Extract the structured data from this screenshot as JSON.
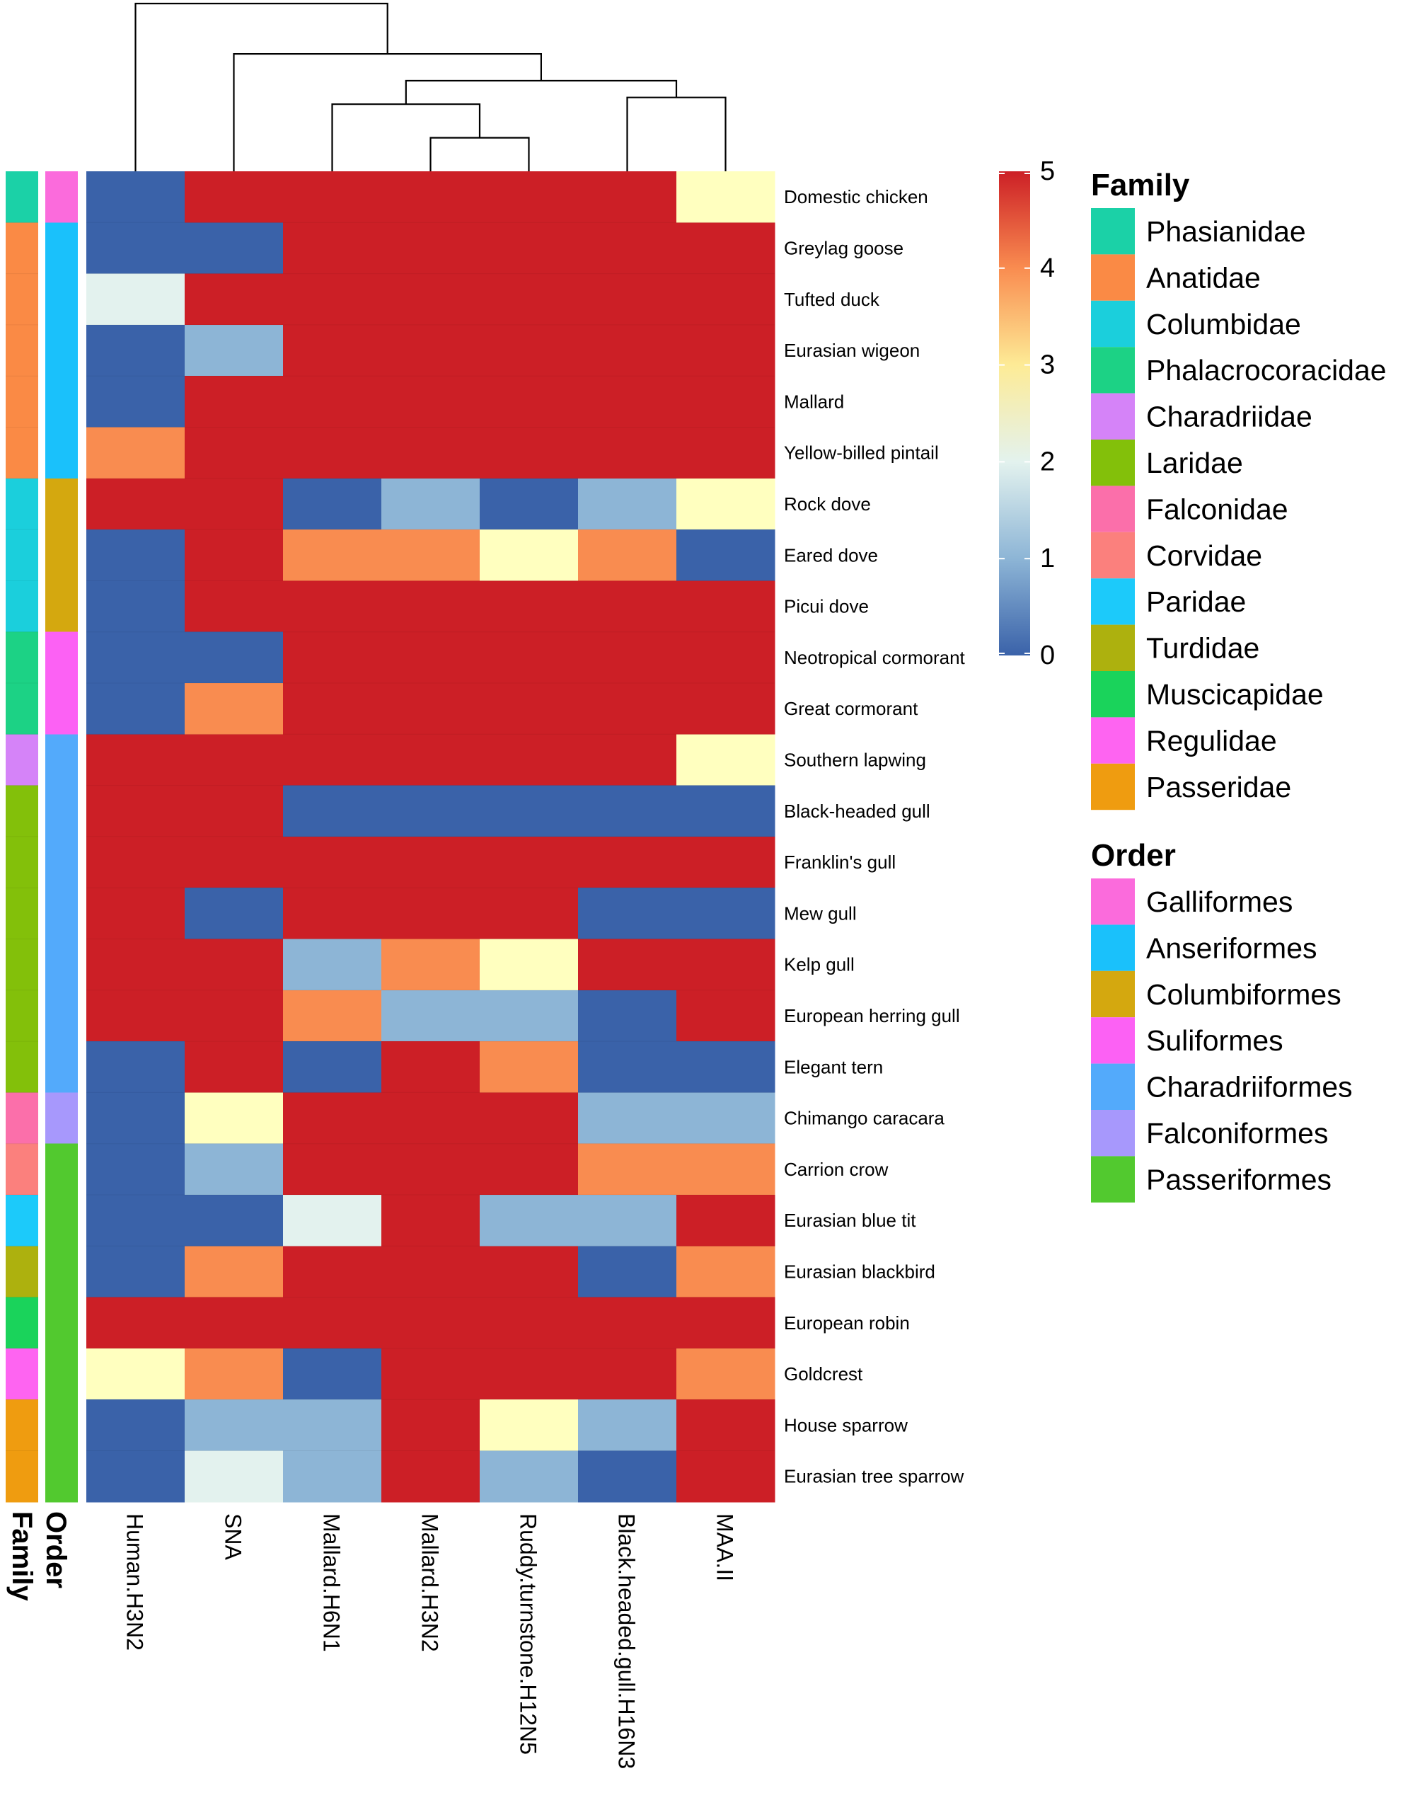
{
  "chart_data": {
    "type": "heatmap",
    "title": "",
    "columns": [
      "Human.H3N2",
      "SNA",
      "Mallard.H6N1",
      "Mallard.H3N2",
      "Ruddy.turnstone.H12N5",
      "Black.headed.gull.H16N3",
      "MAA.II"
    ],
    "rows": [
      "Domestic chicken",
      "Greylag goose",
      "Tufted duck",
      "Eurasian wigeon",
      "Mallard",
      "Yellow-billed pintail",
      "Rock dove",
      "Eared dove",
      "Picui dove",
      "Neotropical cormorant",
      "Great cormorant",
      "Southern lapwing",
      "Black-headed gull",
      "Franklin's gull",
      "Mew gull",
      "Kelp gull",
      "European herring gull",
      "Elegant tern",
      "Chimango caracara",
      "Carrion crow",
      "Eurasian blue tit",
      "Eurasian blackbird",
      "European robin",
      "Goldcrest",
      "House sparrow",
      "Eurasian tree sparrow"
    ],
    "values": [
      [
        0,
        5,
        5,
        5,
        5,
        5,
        3
      ],
      [
        0,
        0,
        5,
        5,
        5,
        5,
        5
      ],
      [
        2,
        5,
        5,
        5,
        5,
        5,
        5
      ],
      [
        0,
        1,
        5,
        5,
        5,
        5,
        5
      ],
      [
        0,
        5,
        5,
        5,
        5,
        5,
        5
      ],
      [
        4,
        5,
        5,
        5,
        5,
        5,
        5
      ],
      [
        5,
        5,
        0,
        1,
        0,
        1,
        3
      ],
      [
        0,
        5,
        4,
        4,
        3,
        4,
        0
      ],
      [
        0,
        5,
        5,
        5,
        5,
        5,
        5
      ],
      [
        0,
        0,
        5,
        5,
        5,
        5,
        5
      ],
      [
        0,
        4,
        5,
        5,
        5,
        5,
        5
      ],
      [
        5,
        5,
        5,
        5,
        5,
        5,
        3
      ],
      [
        5,
        5,
        0,
        0,
        0,
        0,
        0
      ],
      [
        5,
        5,
        5,
        5,
        5,
        5,
        5
      ],
      [
        5,
        0,
        5,
        5,
        5,
        0,
        0
      ],
      [
        5,
        5,
        1,
        4,
        3,
        5,
        5
      ],
      [
        5,
        5,
        4,
        1,
        1,
        0,
        5
      ],
      [
        0,
        5,
        0,
        5,
        4,
        0,
        0
      ],
      [
        0,
        3,
        5,
        5,
        5,
        1,
        1
      ],
      [
        0,
        1,
        5,
        5,
        5,
        4,
        4
      ],
      [
        0,
        0,
        2,
        5,
        1,
        1,
        5
      ],
      [
        0,
        4,
        5,
        5,
        5,
        0,
        4
      ],
      [
        5,
        5,
        5,
        5,
        5,
        5,
        5
      ],
      [
        3,
        4,
        0,
        5,
        5,
        5,
        4
      ],
      [
        0,
        1,
        1,
        5,
        3,
        1,
        5
      ],
      [
        0,
        2,
        1,
        5,
        1,
        0,
        5
      ]
    ],
    "row_family": [
      "Phasianidae",
      "Anatidae",
      "Anatidae",
      "Anatidae",
      "Anatidae",
      "Anatidae",
      "Columbidae",
      "Columbidae",
      "Columbidae",
      "Phalacrocoracidae",
      "Phalacrocoracidae",
      "Charadriidae",
      "Laridae",
      "Laridae",
      "Laridae",
      "Laridae",
      "Laridae",
      "Laridae",
      "Falconidae",
      "Corvidae",
      "Paridae",
      "Turdidae",
      "Muscicapidae",
      "Regulidae",
      "Passeridae",
      "Passeridae"
    ],
    "row_order": [
      "Galliformes",
      "Anseriformes",
      "Anseriformes",
      "Anseriformes",
      "Anseriformes",
      "Anseriformes",
      "Columbiformes",
      "Columbiformes",
      "Columbiformes",
      "Suliformes",
      "Suliformes",
      "Charadriiformes",
      "Charadriiformes",
      "Charadriiformes",
      "Charadriiformes",
      "Charadriiformes",
      "Charadriiformes",
      "Charadriiformes",
      "Falconiformes",
      "Passeriformes",
      "Passeriformes",
      "Passeriformes",
      "Passeriformes",
      "Passeriformes",
      "Passeriformes",
      "Passeriformes"
    ],
    "color_scale": {
      "min": 0,
      "max": 5,
      "ticks": [
        5,
        4,
        3,
        2,
        1,
        0
      ],
      "low_color": "#3A62A9",
      "mid_color": "#FFFFBF",
      "high_color": "#CC1F26"
    },
    "annotation_labels": {
      "family": "Family",
      "order": "Order"
    },
    "family_legend": {
      "title": "Family",
      "items": [
        {
          "name": "Phasianidae",
          "color": "#1BD1A7"
        },
        {
          "name": "Anatidae",
          "color": "#FA8A45"
        },
        {
          "name": "Columbidae",
          "color": "#1BCFDC"
        },
        {
          "name": "Phalacrocoracidae",
          "color": "#1CD285"
        },
        {
          "name": "Charadriidae",
          "color": "#D583F8"
        },
        {
          "name": "Laridae",
          "color": "#83C00A"
        },
        {
          "name": "Falconidae",
          "color": "#FB6FAA"
        },
        {
          "name": "Corvidae",
          "color": "#FB807D"
        },
        {
          "name": "Paridae",
          "color": "#1CCAFA"
        },
        {
          "name": "Turdidae",
          "color": "#ADB10E"
        },
        {
          "name": "Muscicapidae",
          "color": "#1AD35B"
        },
        {
          "name": "Regulidae",
          "color": "#FE64F1"
        },
        {
          "name": "Passeridae",
          "color": "#EF9C10"
        }
      ]
    },
    "order_legend": {
      "title": "Order",
      "items": [
        {
          "name": "Galliformes",
          "color": "#FB6BDC"
        },
        {
          "name": "Anseriformes",
          "color": "#1AC1FB"
        },
        {
          "name": "Columbiformes",
          "color": "#D4A80F"
        },
        {
          "name": "Suliformes",
          "color": "#FC61F4"
        },
        {
          "name": "Charadriiformes",
          "color": "#53AAFB"
        },
        {
          "name": "Falconiformes",
          "color": "#A798FC"
        },
        {
          "name": "Passeriformes",
          "color": "#52C92F"
        }
      ]
    },
    "dendrogram": {
      "order": [
        0,
        1,
        2,
        3,
        4,
        5,
        6
      ],
      "merges": [
        [
          3,
          4,
          1.0
        ],
        [
          2,
          "m0",
          2.0
        ],
        [
          5,
          6,
          2.2
        ],
        [
          "m1",
          "m2",
          2.7
        ],
        [
          1,
          "m3",
          3.5
        ],
        [
          0,
          "m4",
          5.0
        ]
      ]
    }
  }
}
